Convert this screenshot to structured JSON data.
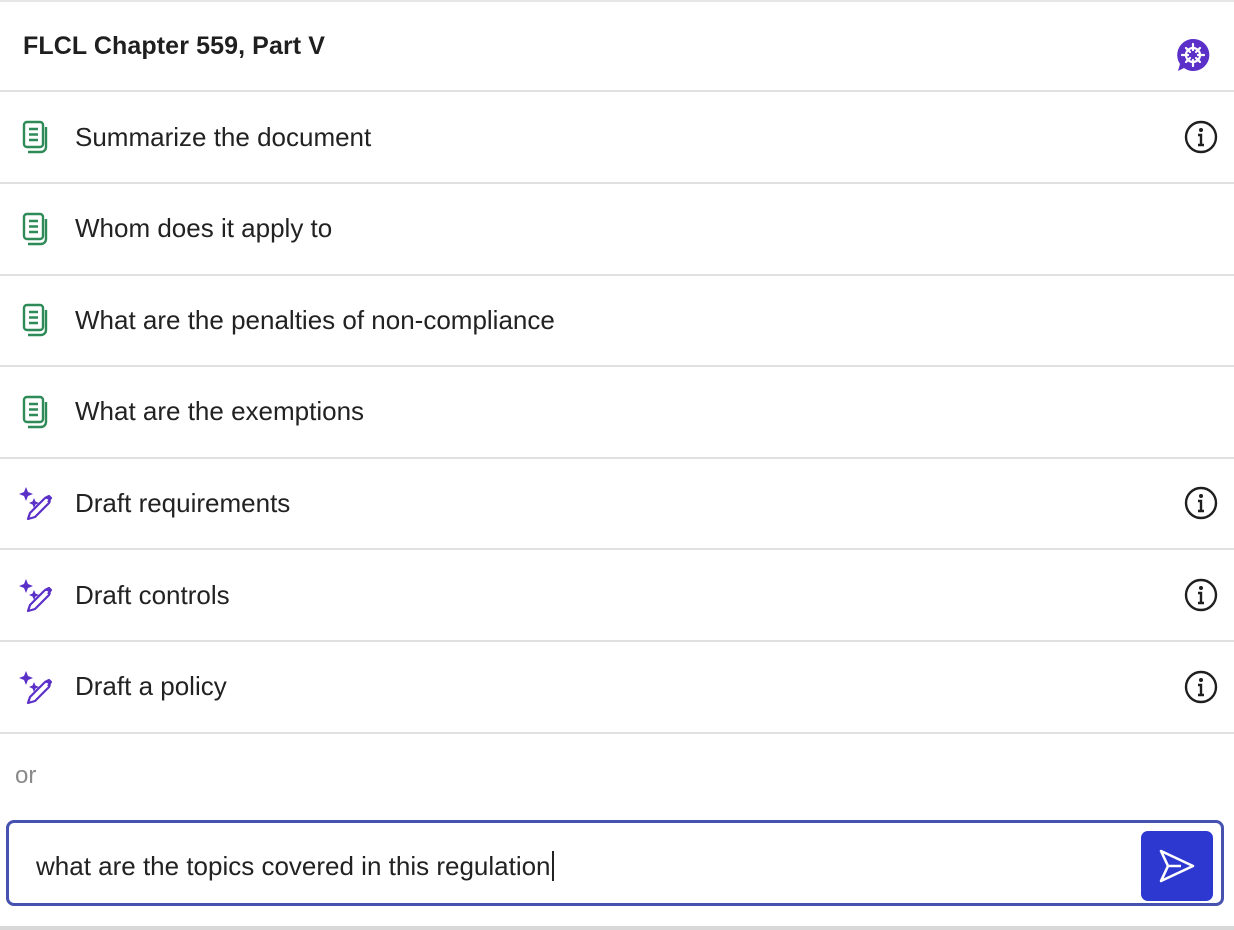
{
  "header": {
    "title": "FLCL Chapter 559, Part V",
    "logo_icon": "chat-assistant-logo-icon"
  },
  "colors": {
    "document_icon": "#2e8b57",
    "draft_icon": "#5b30c8",
    "accent": "#2c38d0",
    "input_border": "#4651b0"
  },
  "prompts": [
    {
      "label": "Summarize the document",
      "icon": "document-icon",
      "info": true
    },
    {
      "label": "Whom does it apply to",
      "icon": "document-icon",
      "info": false
    },
    {
      "label": "What are the penalties of non-compliance",
      "icon": "document-icon",
      "info": false
    },
    {
      "label": "What are the exemptions",
      "icon": "document-icon",
      "info": false
    },
    {
      "label": "Draft requirements",
      "icon": "sparkle-pen-icon",
      "info": true
    },
    {
      "label": "Draft controls",
      "icon": "sparkle-pen-icon",
      "info": true
    },
    {
      "label": "Draft a policy",
      "icon": "sparkle-pen-icon",
      "info": true
    }
  ],
  "or_label": "or",
  "query": {
    "value": "what are the topics covered in this regulation",
    "send_icon": "send-icon"
  }
}
